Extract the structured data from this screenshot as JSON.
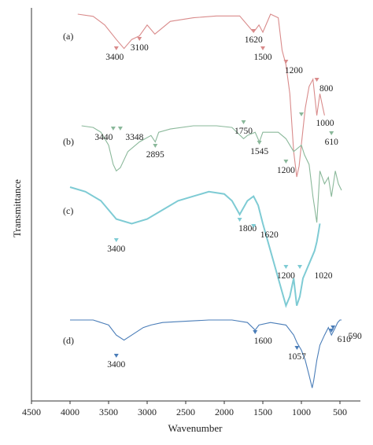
{
  "chart_data": {
    "type": "line",
    "title": "",
    "xlabel": "Wavenumber",
    "ylabel": "Transmittance",
    "xlim": [
      4500,
      400
    ],
    "x_reversed": true,
    "x_ticks": [
      4500,
      4000,
      3500,
      3000,
      2500,
      2000,
      1500,
      1000,
      500
    ],
    "y_ticks": [],
    "grid": false,
    "series": [
      {
        "name": "(a)",
        "color": "#d98b8b",
        "points": [
          [
            3900,
            0.0
          ],
          [
            3700,
            0.6
          ],
          [
            3550,
            3
          ],
          [
            3400,
            7
          ],
          [
            3300,
            9.5
          ],
          [
            3200,
            7
          ],
          [
            3100,
            6
          ],
          [
            3000,
            3
          ],
          [
            2900,
            5.5
          ],
          [
            2700,
            2
          ],
          [
            2400,
            1
          ],
          [
            2100,
            0.5
          ],
          [
            1800,
            0.5
          ],
          [
            1620,
            5
          ],
          [
            1550,
            3
          ],
          [
            1500,
            5
          ],
          [
            1400,
            0
          ],
          [
            1300,
            1
          ],
          [
            1250,
            10
          ],
          [
            1200,
            14
          ],
          [
            1150,
            22
          ],
          [
            1100,
            38
          ],
          [
            1060,
            45
          ],
          [
            1030,
            42
          ],
          [
            1000,
            36
          ],
          [
            950,
            26
          ],
          [
            900,
            20
          ],
          [
            850,
            18
          ],
          [
            800,
            28
          ],
          [
            760,
            22
          ],
          [
            720,
            26
          ],
          [
            700,
            28
          ]
        ],
        "peaks": [
          {
            "label": "3400",
            "x": 3400
          },
          {
            "label": "3100",
            "x": 3100
          },
          {
            "label": "1620",
            "x": 1620
          },
          {
            "label": "1500",
            "x": 1500
          },
          {
            "label": "1200",
            "x": 1200
          },
          {
            "label": "800",
            "x": 800
          }
        ]
      },
      {
        "name": "(b)",
        "color": "#8ab89a",
        "points": [
          [
            3850,
            0
          ],
          [
            3700,
            0.5
          ],
          [
            3600,
            2
          ],
          [
            3500,
            6
          ],
          [
            3440,
            12
          ],
          [
            3400,
            14
          ],
          [
            3348,
            13
          ],
          [
            3250,
            8
          ],
          [
            3100,
            5
          ],
          [
            2950,
            3
          ],
          [
            2895,
            5
          ],
          [
            2850,
            2
          ],
          [
            2700,
            1
          ],
          [
            2400,
            0
          ],
          [
            2100,
            0
          ],
          [
            1900,
            0.5
          ],
          [
            1750,
            4
          ],
          [
            1700,
            3
          ],
          [
            1600,
            2
          ],
          [
            1545,
            5
          ],
          [
            1500,
            2
          ],
          [
            1300,
            2
          ],
          [
            1200,
            4
          ],
          [
            1100,
            8
          ],
          [
            1000,
            6
          ],
          [
            960,
            9
          ],
          [
            900,
            12
          ],
          [
            850,
            22
          ],
          [
            800,
            30
          ],
          [
            780,
            22
          ],
          [
            760,
            14
          ],
          [
            700,
            18
          ],
          [
            650,
            16
          ],
          [
            610,
            22
          ],
          [
            560,
            14
          ],
          [
            520,
            18
          ],
          [
            480,
            20
          ]
        ],
        "peaks": [
          {
            "label": "3440",
            "x": 3440
          },
          {
            "label": "3348",
            "x": 3348
          },
          {
            "label": "2895",
            "x": 2895
          },
          {
            "label": "1750",
            "x": 1750
          },
          {
            "label": "1545",
            "x": 1545
          },
          {
            "label": "1000",
            "x": 1000
          },
          {
            "label": "1200",
            "x": 1200
          },
          {
            "label": "610",
            "x": 610
          }
        ]
      },
      {
        "name": "(c)",
        "color": "#7ecbd4",
        "points": [
          [
            4000,
            0
          ],
          [
            3800,
            1
          ],
          [
            3600,
            3
          ],
          [
            3400,
            7
          ],
          [
            3200,
            8
          ],
          [
            3000,
            7
          ],
          [
            2800,
            5
          ],
          [
            2600,
            3
          ],
          [
            2400,
            2
          ],
          [
            2200,
            1
          ],
          [
            2000,
            1.5
          ],
          [
            1900,
            3
          ],
          [
            1800,
            6
          ],
          [
            1700,
            3
          ],
          [
            1620,
            2
          ],
          [
            1560,
            4
          ],
          [
            1500,
            8
          ],
          [
            1400,
            14
          ],
          [
            1300,
            20
          ],
          [
            1200,
            26
          ],
          [
            1150,
            24
          ],
          [
            1100,
            20
          ],
          [
            1060,
            26
          ],
          [
            1020,
            24
          ],
          [
            980,
            20
          ],
          [
            930,
            18
          ],
          [
            880,
            16
          ],
          [
            830,
            14
          ],
          [
            800,
            12
          ],
          [
            780,
            10
          ],
          [
            760,
            8
          ]
        ],
        "peaks": [
          {
            "label": "3400",
            "x": 3400
          },
          {
            "label": "1800",
            "x": 1800
          },
          {
            "label": "1620",
            "x": 1620
          },
          {
            "label": "1200",
            "x": 1200
          },
          {
            "label": "1020",
            "x": 1020
          }
        ]
      },
      {
        "name": "(d)",
        "color": "#4a7db8",
        "points": [
          [
            4000,
            0
          ],
          [
            3700,
            0
          ],
          [
            3500,
            2
          ],
          [
            3400,
            6
          ],
          [
            3300,
            8
          ],
          [
            3200,
            6
          ],
          [
            3050,
            3
          ],
          [
            2950,
            2
          ],
          [
            2800,
            1
          ],
          [
            2500,
            0.5
          ],
          [
            2200,
            0
          ],
          [
            1900,
            0
          ],
          [
            1700,
            1
          ],
          [
            1600,
            4
          ],
          [
            1550,
            2
          ],
          [
            1400,
            1
          ],
          [
            1200,
            2
          ],
          [
            1100,
            6
          ],
          [
            1057,
            9
          ],
          [
            1000,
            12
          ],
          [
            950,
            16
          ],
          [
            900,
            22
          ],
          [
            860,
            27
          ],
          [
            840,
            24
          ],
          [
            800,
            16
          ],
          [
            760,
            10
          ],
          [
            700,
            6
          ],
          [
            650,
            3
          ],
          [
            610,
            6
          ],
          [
            560,
            3
          ],
          [
            530,
            1
          ],
          [
            500,
            0
          ],
          [
            480,
            0
          ]
        ],
        "peaks": [
          {
            "label": "3400",
            "x": 3400
          },
          {
            "label": "1600",
            "x": 1600
          },
          {
            "label": "1057",
            "x": 1057
          },
          {
            "label": "610",
            "x": 610
          },
          {
            "label": "590",
            "x": 590
          }
        ]
      }
    ]
  }
}
